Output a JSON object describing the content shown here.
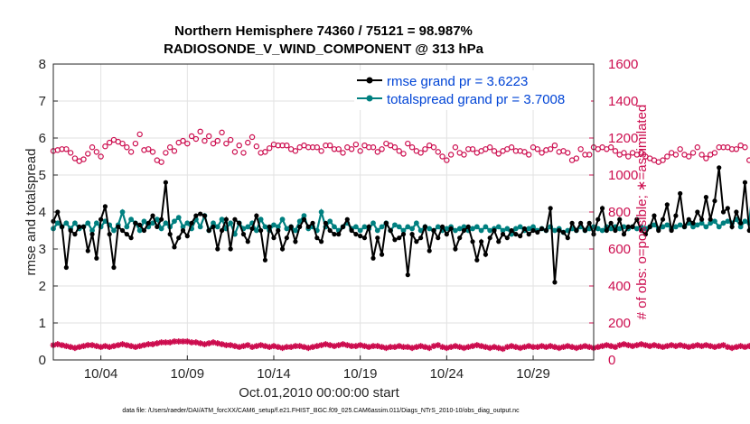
{
  "chart_data": {
    "type": "line",
    "title_line1": "Northern Hemisphere 74360 / 75121 = 98.987%",
    "title_line2": "RADIOSONDE_V_WIND_COMPONENT @ 313 hPa",
    "xlabel": "Oct.01,2010 00:00:00 start",
    "ylabel": "rmse and totalspread",
    "ylabel_right": "# of obs: o=possible; ∗=assimilated",
    "footnote": "data file: /Users/raeder/DAI/ATM_forcXX/CAM6_setup/f.e21.FHIST_BGC.f09_025.CAM6assim.011/Diags_NTrS_2010-10/obs_diag_output.nc",
    "xlim": [
      1.25,
      32.5
    ],
    "ylim": [
      0,
      8
    ],
    "ylim_right": [
      0,
      1600
    ],
    "xticks": [
      4,
      9,
      14,
      19,
      24,
      29
    ],
    "xtick_labels": [
      "10/04",
      "10/09",
      "10/14",
      "10/19",
      "10/24",
      "10/29"
    ],
    "yticks": [
      0,
      1,
      2,
      3,
      4,
      5,
      6,
      7,
      8
    ],
    "yticks_right": [
      0,
      200,
      400,
      600,
      800,
      1000,
      1200,
      1400,
      1600
    ],
    "step_days": 0.25,
    "start_day": 1.25,
    "series": [
      {
        "name": "rmse grand pr = 3.6223",
        "color": "#000000",
        "values": [
          3.75,
          4.0,
          3.6,
          2.5,
          3.5,
          3.4,
          3.6,
          3.6,
          2.95,
          3.4,
          2.75,
          3.8,
          4.15,
          3.4,
          2.5,
          3.6,
          3.5,
          3.4,
          3.3,
          3.7,
          3.65,
          3.5,
          3.7,
          3.9,
          3.6,
          3.8,
          4.8,
          3.4,
          3.05,
          3.3,
          3.5,
          3.35,
          3.7,
          3.9,
          3.95,
          3.9,
          3.5,
          3.6,
          3.0,
          3.5,
          3.8,
          3.0,
          3.8,
          3.7,
          3.4,
          3.2,
          3.55,
          3.9,
          3.5,
          2.7,
          3.6,
          3.3,
          3.5,
          3.0,
          3.3,
          3.6,
          3.2,
          3.6,
          3.8,
          3.6,
          3.7,
          3.3,
          3.2,
          3.7,
          3.5,
          3.4,
          3.4,
          3.6,
          3.8,
          3.5,
          3.4,
          3.35,
          3.3,
          3.6,
          2.75,
          3.3,
          2.85,
          3.7,
          3.5,
          3.25,
          3.3,
          3.4,
          2.3,
          3.4,
          3.2,
          3.3,
          3.6,
          2.95,
          3.5,
          3.3,
          3.6,
          3.4,
          3.55,
          3.0,
          3.3,
          3.5,
          3.6,
          3.2,
          2.7,
          3.2,
          2.85,
          3.3,
          3.5,
          3.2,
          3.4,
          3.3,
          3.5,
          3.4,
          3.35,
          3.55,
          3.4,
          3.5,
          3.45,
          3.55,
          3.5,
          4.1,
          2.1,
          3.5,
          3.45,
          3.3,
          3.7,
          3.5,
          3.7,
          3.5,
          3.7,
          3.4,
          3.8,
          4.1,
          3.5,
          3.7,
          3.5,
          3.8,
          3.4,
          3.6,
          3.6,
          3.8,
          3.5,
          3.4,
          3.6,
          3.9,
          3.5,
          3.8,
          4.2,
          3.5,
          3.9,
          4.5,
          3.6,
          3.8,
          3.7,
          4.0,
          3.8,
          4.4,
          3.8,
          4.3,
          5.2,
          4.0,
          4.1,
          3.6,
          4.0,
          3.7,
          4.8,
          3.5,
          3.4,
          3.6,
          3.2,
          3.6,
          3.9,
          3.4,
          3.6,
          3.7,
          3.5,
          3.7,
          4.0,
          3.8,
          3.7,
          3.8,
          4.1,
          3.6,
          3.75,
          3.8,
          3.6,
          5.2,
          4.1,
          3.7,
          3.6,
          3.8,
          3.9,
          3.7,
          3.5,
          4.1,
          3.8,
          3.6,
          3.8,
          3.6,
          3.9,
          3.7,
          3.6,
          3.8,
          3.7,
          3.9,
          3.7,
          3.8,
          4.25,
          3.7,
          4.2,
          3.7,
          3.6,
          3.9,
          3.65,
          3.2
        ]
      },
      {
        "name": "totalspread grand pr = 3.7008",
        "color": "#008080",
        "values": [
          3.55,
          3.7,
          3.6,
          3.7,
          3.55,
          3.7,
          3.55,
          3.6,
          3.7,
          3.5,
          3.7,
          3.6,
          3.75,
          3.65,
          3.5,
          3.65,
          4.0,
          3.6,
          3.8,
          3.7,
          3.5,
          3.75,
          3.6,
          3.7,
          3.8,
          3.55,
          3.7,
          3.6,
          3.75,
          3.85,
          3.6,
          3.7,
          3.55,
          3.8,
          3.6,
          3.9,
          3.5,
          3.7,
          3.6,
          3.8,
          3.55,
          3.7,
          3.4,
          3.7,
          3.55,
          3.6,
          3.7,
          3.5,
          3.8,
          3.6,
          3.5,
          3.65,
          3.6,
          3.8,
          3.55,
          3.6,
          3.5,
          3.75,
          3.9,
          3.55,
          3.6,
          3.5,
          4.0,
          3.6,
          3.75,
          3.6,
          3.5,
          3.6,
          3.7,
          3.55,
          3.6,
          3.5,
          3.6,
          3.55,
          3.7,
          3.5,
          3.6,
          3.7,
          3.5,
          3.65,
          3.6,
          3.5,
          3.6,
          3.55,
          3.7,
          3.5,
          3.6,
          3.55,
          3.5,
          3.6,
          3.5,
          3.55,
          3.6,
          3.5,
          3.55,
          3.6,
          3.5,
          3.55,
          3.6,
          3.5,
          3.6,
          3.5,
          3.55,
          3.6,
          3.5,
          3.55,
          3.4,
          3.55,
          3.6,
          3.5,
          3.55,
          3.6,
          3.5,
          3.55,
          3.5,
          3.6,
          3.5,
          3.55,
          3.45,
          3.5,
          3.55,
          3.5,
          3.6,
          3.5,
          3.55,
          3.6,
          3.55,
          3.5,
          3.6,
          3.55,
          3.6,
          3.55,
          3.6,
          3.55,
          3.6,
          3.55,
          3.6,
          3.55,
          3.6,
          3.65,
          3.55,
          3.6,
          3.65,
          3.55,
          3.6,
          3.65,
          3.6,
          3.7,
          3.6,
          3.65,
          3.7,
          3.6,
          3.7,
          3.75,
          3.6,
          3.7,
          3.75,
          3.7,
          3.8,
          3.6,
          3.75,
          3.7,
          4.9,
          3.6,
          3.7,
          3.55,
          3.6,
          3.7,
          3.5,
          3.65,
          3.6,
          3.7,
          3.55,
          3.65,
          3.6,
          3.7,
          3.6,
          3.75,
          3.65,
          3.6,
          3.7,
          3.65,
          3.75,
          3.6,
          3.7,
          3.75,
          3.65,
          3.6,
          3.7,
          3.65,
          3.7,
          3.6,
          3.7,
          3.65,
          3.6,
          3.7,
          3.65,
          3.7,
          3.6,
          3.7,
          3.75,
          3.65,
          3.7,
          3.6,
          3.7,
          3.65,
          3.7,
          3.6,
          3.7,
          3.65,
          3.7,
          3.6
        ]
      },
      {
        "name": "possible obs (upper band)",
        "axis": "right",
        "color": "#cc0c4e",
        "marker": "o",
        "values": [
          1130,
          1135,
          1140,
          1140,
          1120,
          1090,
          1075,
          1085,
          1115,
          1150,
          1125,
          1100,
          1155,
          1175,
          1190,
          1180,
          1170,
          1150,
          1125,
          1170,
          1220,
          1135,
          1140,
          1125,
          1080,
          1070,
          1120,
          1150,
          1130,
          1175,
          1185,
          1170,
          1210,
          1195,
          1235,
          1185,
          1210,
          1170,
          1185,
          1230,
          1170,
          1190,
          1125,
          1160,
          1120,
          1175,
          1205,
          1155,
          1120,
          1125,
          1145,
          1165,
          1160,
          1160,
          1160,
          1140,
          1130,
          1150,
          1160,
          1150,
          1150,
          1150,
          1130,
          1160,
          1160,
          1140,
          1140,
          1120,
          1150,
          1140,
          1165,
          1130,
          1160,
          1150,
          1150,
          1125,
          1140,
          1170,
          1160,
          1150,
          1130,
          1115,
          1170,
          1150,
          1130,
          1120,
          1140,
          1160,
          1150,
          1125,
          1100,
          1080,
          1110,
          1150,
          1120,
          1110,
          1140,
          1140,
          1120,
          1130,
          1140,
          1150,
          1130,
          1115,
          1130,
          1140,
          1150,
          1130,
          1130,
          1125,
          1110,
          1150,
          1140,
          1120,
          1135,
          1140,
          1160,
          1125,
          1130,
          1120,
          1080,
          1090,
          1140,
          1110,
          1110,
          1150,
          1140,
          1150,
          1140,
          1150,
          1130,
          1110,
          1120,
          1100,
          1120,
          1110,
          1120,
          1100,
          1090,
          1080,
          1070,
          1080,
          1100,
          1120,
          1110,
          1140,
          1110,
          1100,
          1120,
          1150,
          1110,
          1090,
          1110,
          1120,
          1150,
          1150,
          1150,
          1140,
          1140,
          1160,
          1150,
          1080,
          1110,
          1100,
          1120,
          1130,
          1090,
          1100,
          1080,
          1090,
          1100,
          1110,
          1100,
          1110,
          1130,
          1120,
          1110,
          1100,
          1100,
          1080,
          1090,
          1100,
          1110,
          1130,
          1110,
          1110,
          1120,
          1130,
          1120,
          1110,
          1100,
          1100,
          1090,
          1090,
          1100,
          1100,
          1090,
          1090,
          1100,
          1090,
          1090,
          1090,
          1100
        ]
      },
      {
        "name": "assimilated obs (lower band)",
        "axis": "right",
        "color": "#cc0c4e",
        "marker": "*",
        "values": [
          80,
          85,
          80,
          75,
          70,
          65,
          70,
          75,
          80,
          80,
          75,
          70,
          75,
          70,
          75,
          80,
          85,
          80,
          75,
          70,
          75,
          80,
          85,
          85,
          90,
          95,
          95,
          95,
          100,
          100,
          100,
          100,
          95,
          95,
          90,
          85,
          90,
          95,
          90,
          85,
          80,
          80,
          75,
          70,
          75,
          80,
          70,
          75,
          80,
          75,
          70,
          75,
          70,
          65,
          70,
          70,
          75,
          75,
          70,
          65,
          70,
          75,
          80,
          85,
          80,
          75,
          80,
          85,
          80,
          75,
          75,
          80,
          75,
          70,
          75,
          75,
          70,
          65,
          70,
          70,
          75,
          70,
          70,
          65,
          70,
          75,
          70,
          65,
          75,
          80,
          70,
          65,
          70,
          75,
          70,
          65,
          70,
          75,
          80,
          75,
          70,
          65,
          70,
          65,
          60,
          70,
          75,
          70,
          65,
          70,
          75,
          70,
          70,
          75,
          70,
          75,
          70,
          65,
          70,
          75,
          70,
          65,
          70,
          75,
          70,
          65,
          70,
          75,
          80,
          75,
          70,
          80,
          85,
          80,
          75,
          80,
          85,
          80,
          75,
          80,
          75,
          70,
          75,
          80,
          75,
          80,
          75,
          70,
          75,
          80,
          75,
          80,
          75,
          70,
          75,
          80,
          70,
          65,
          70,
          75,
          70,
          75,
          70,
          65,
          70,
          75,
          80,
          75,
          70,
          75,
          80,
          85,
          80,
          75,
          70,
          65,
          70,
          75,
          70,
          75,
          80,
          75,
          70,
          60,
          65,
          55,
          50,
          55,
          45,
          50,
          55,
          50,
          45,
          50,
          40,
          45,
          45,
          50,
          45,
          50,
          45,
          40,
          45,
          30
        ]
      }
    ]
  }
}
